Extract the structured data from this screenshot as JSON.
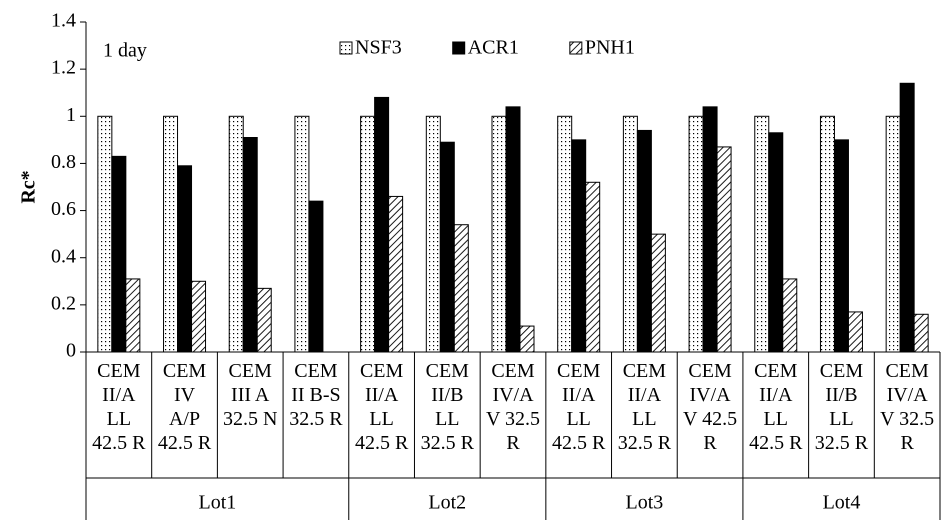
{
  "chart_data": {
    "type": "bar",
    "annotation": "1 day",
    "y_label": "Rc*",
    "groups": [
      {
        "label": "Lot1",
        "categories": [
          "CEM II/A LL 42.5 R",
          "CEM IV A/P 42.5 R",
          "CEM III A 32.5 N",
          "CEM II B-S 32.5 R"
        ]
      },
      {
        "label": "Lot2",
        "categories": [
          "CEM II/A LL 42.5 R",
          "CEM II/B LL 32.5 R",
          "CEM IV/A V 32.5 R"
        ]
      },
      {
        "label": "Lot3",
        "categories": [
          "CEM II/A LL 42.5 R",
          "CEM II/A LL 32.5 R",
          "CEM IV/A V 42.5 R"
        ]
      },
      {
        "label": "Lot4",
        "categories": [
          "CEM II/A LL 42.5 R",
          "CEM II/B LL 32.5 R",
          "CEM IV/A V 32.5 R"
        ]
      }
    ],
    "series": [
      {
        "name": "NSF3",
        "color": "#000000",
        "pattern": "dots",
        "values": [
          1,
          1,
          1,
          1,
          1,
          1,
          1,
          1,
          1,
          1,
          1,
          1,
          1
        ]
      },
      {
        "name": "ACR1",
        "color": "#000000",
        "pattern": "solid",
        "values": [
          0.83,
          0.79,
          0.91,
          0.64,
          1.08,
          0.89,
          1.04,
          0.9,
          0.94,
          1.04,
          0.93,
          0.9,
          1.14
        ]
      },
      {
        "name": "PNH1",
        "color": "#000000",
        "pattern": "hatch",
        "values": [
          0.31,
          0.3,
          0.27,
          null,
          0.66,
          0.54,
          0.11,
          0.72,
          0.5,
          0.87,
          0.31,
          0.17,
          0.16
        ]
      }
    ],
    "ylim": [
      0,
      1.4
    ],
    "yticks": [
      0,
      0.2,
      0.4,
      0.6,
      0.8,
      1,
      1.2,
      1.4
    ],
    "legend": "top"
  }
}
